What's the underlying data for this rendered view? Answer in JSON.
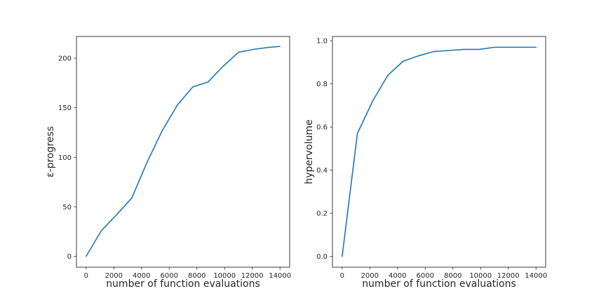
{
  "chart_data": [
    {
      "type": "line",
      "xlabel": "number of function evaluations",
      "ylabel": "ε-progress",
      "xlim": [
        -700,
        14700
      ],
      "ylim": [
        -11,
        222
      ],
      "xticks": [
        0,
        2000,
        4000,
        6000,
        8000,
        10000,
        12000,
        14000
      ],
      "yticks": [
        0,
        50,
        100,
        150,
        200
      ],
      "grid": false,
      "series": [
        {
          "color": "#1f77b4",
          "x": [
            0,
            1100,
            2200,
            3300,
            4400,
            5500,
            6600,
            7700,
            8800,
            9900,
            11000,
            12100,
            13200,
            14000
          ],
          "y": [
            0,
            26,
            42,
            59,
            95,
            127,
            153,
            171,
            176,
            192,
            206,
            209,
            211,
            212
          ]
        }
      ]
    },
    {
      "type": "line",
      "xlabel": "number of function evaluations",
      "ylabel": "hypervolume",
      "xlim": [
        -700,
        14700
      ],
      "ylim": [
        -0.05,
        1.02
      ],
      "xticks": [
        0,
        2000,
        4000,
        6000,
        8000,
        10000,
        12000,
        14000
      ],
      "yticks": [
        0.0,
        0.2,
        0.4,
        0.6,
        0.8,
        1.0
      ],
      "ytick_decimals": 1,
      "grid": false,
      "series": [
        {
          "color": "#1f77b4",
          "x": [
            0,
            1100,
            2200,
            3300,
            4400,
            5500,
            6600,
            7700,
            8800,
            9900,
            11000,
            12100,
            13200,
            14000
          ],
          "y": [
            0.0,
            0.57,
            0.72,
            0.84,
            0.905,
            0.93,
            0.95,
            0.955,
            0.96,
            0.96,
            0.97,
            0.97,
            0.97,
            0.97
          ]
        }
      ]
    }
  ]
}
